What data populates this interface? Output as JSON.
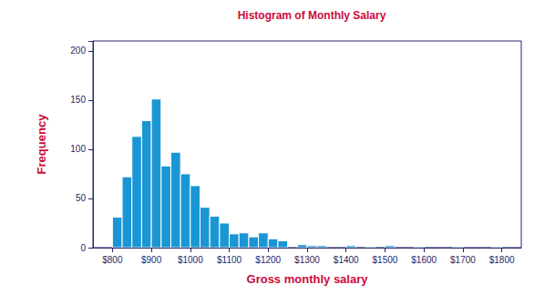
{
  "chart_data": {
    "type": "histogram",
    "title": "Histogram of Monthly Salary",
    "x_label": "Gross monthly salary",
    "y_label": "Frequency",
    "bins": [
      800,
      825,
      850,
      875,
      900,
      925,
      950,
      975,
      1000,
      1025,
      1050,
      1075,
      1100,
      1125,
      1150,
      1175,
      1200,
      1225,
      1250,
      1275,
      1300,
      1325,
      1350,
      1375,
      1400,
      1425,
      1450,
      1475,
      1500,
      1525,
      1550,
      1575,
      1600,
      1625,
      1650,
      1675,
      1700,
      1725,
      1750,
      1775,
      1800
    ],
    "values": [
      31,
      72,
      113,
      129,
      151,
      83,
      97,
      75,
      63,
      41,
      32,
      25,
      14,
      15,
      11,
      15,
      9,
      7,
      0,
      3,
      2,
      2,
      0,
      0,
      2,
      0,
      1,
      0,
      2,
      0,
      0,
      1,
      0,
      0,
      0,
      1,
      0,
      0,
      0,
      1
    ],
    "color": "#1a96d4",
    "xlim": [
      750,
      1850
    ],
    "xticks": [
      {
        "value": 800,
        "label": "$800"
      },
      {
        "value": 900,
        "label": "$900"
      },
      {
        "value": 1000,
        "label": "$1000"
      },
      {
        "value": 1100,
        "label": "$1100"
      },
      {
        "value": 1200,
        "label": "$1200"
      },
      {
        "value": 1300,
        "label": "$1300"
      },
      {
        "value": 1400,
        "label": "$1400"
      },
      {
        "value": 1500,
        "label": "$1500"
      },
      {
        "value": 1600,
        "label": "$1600"
      },
      {
        "value": 1700,
        "label": "$1700"
      },
      {
        "value": 1800,
        "label": "$1800"
      }
    ],
    "ylim": [
      0,
      210
    ],
    "yticks": [
      0,
      50,
      100,
      150,
      200
    ],
    "grid": false
  }
}
